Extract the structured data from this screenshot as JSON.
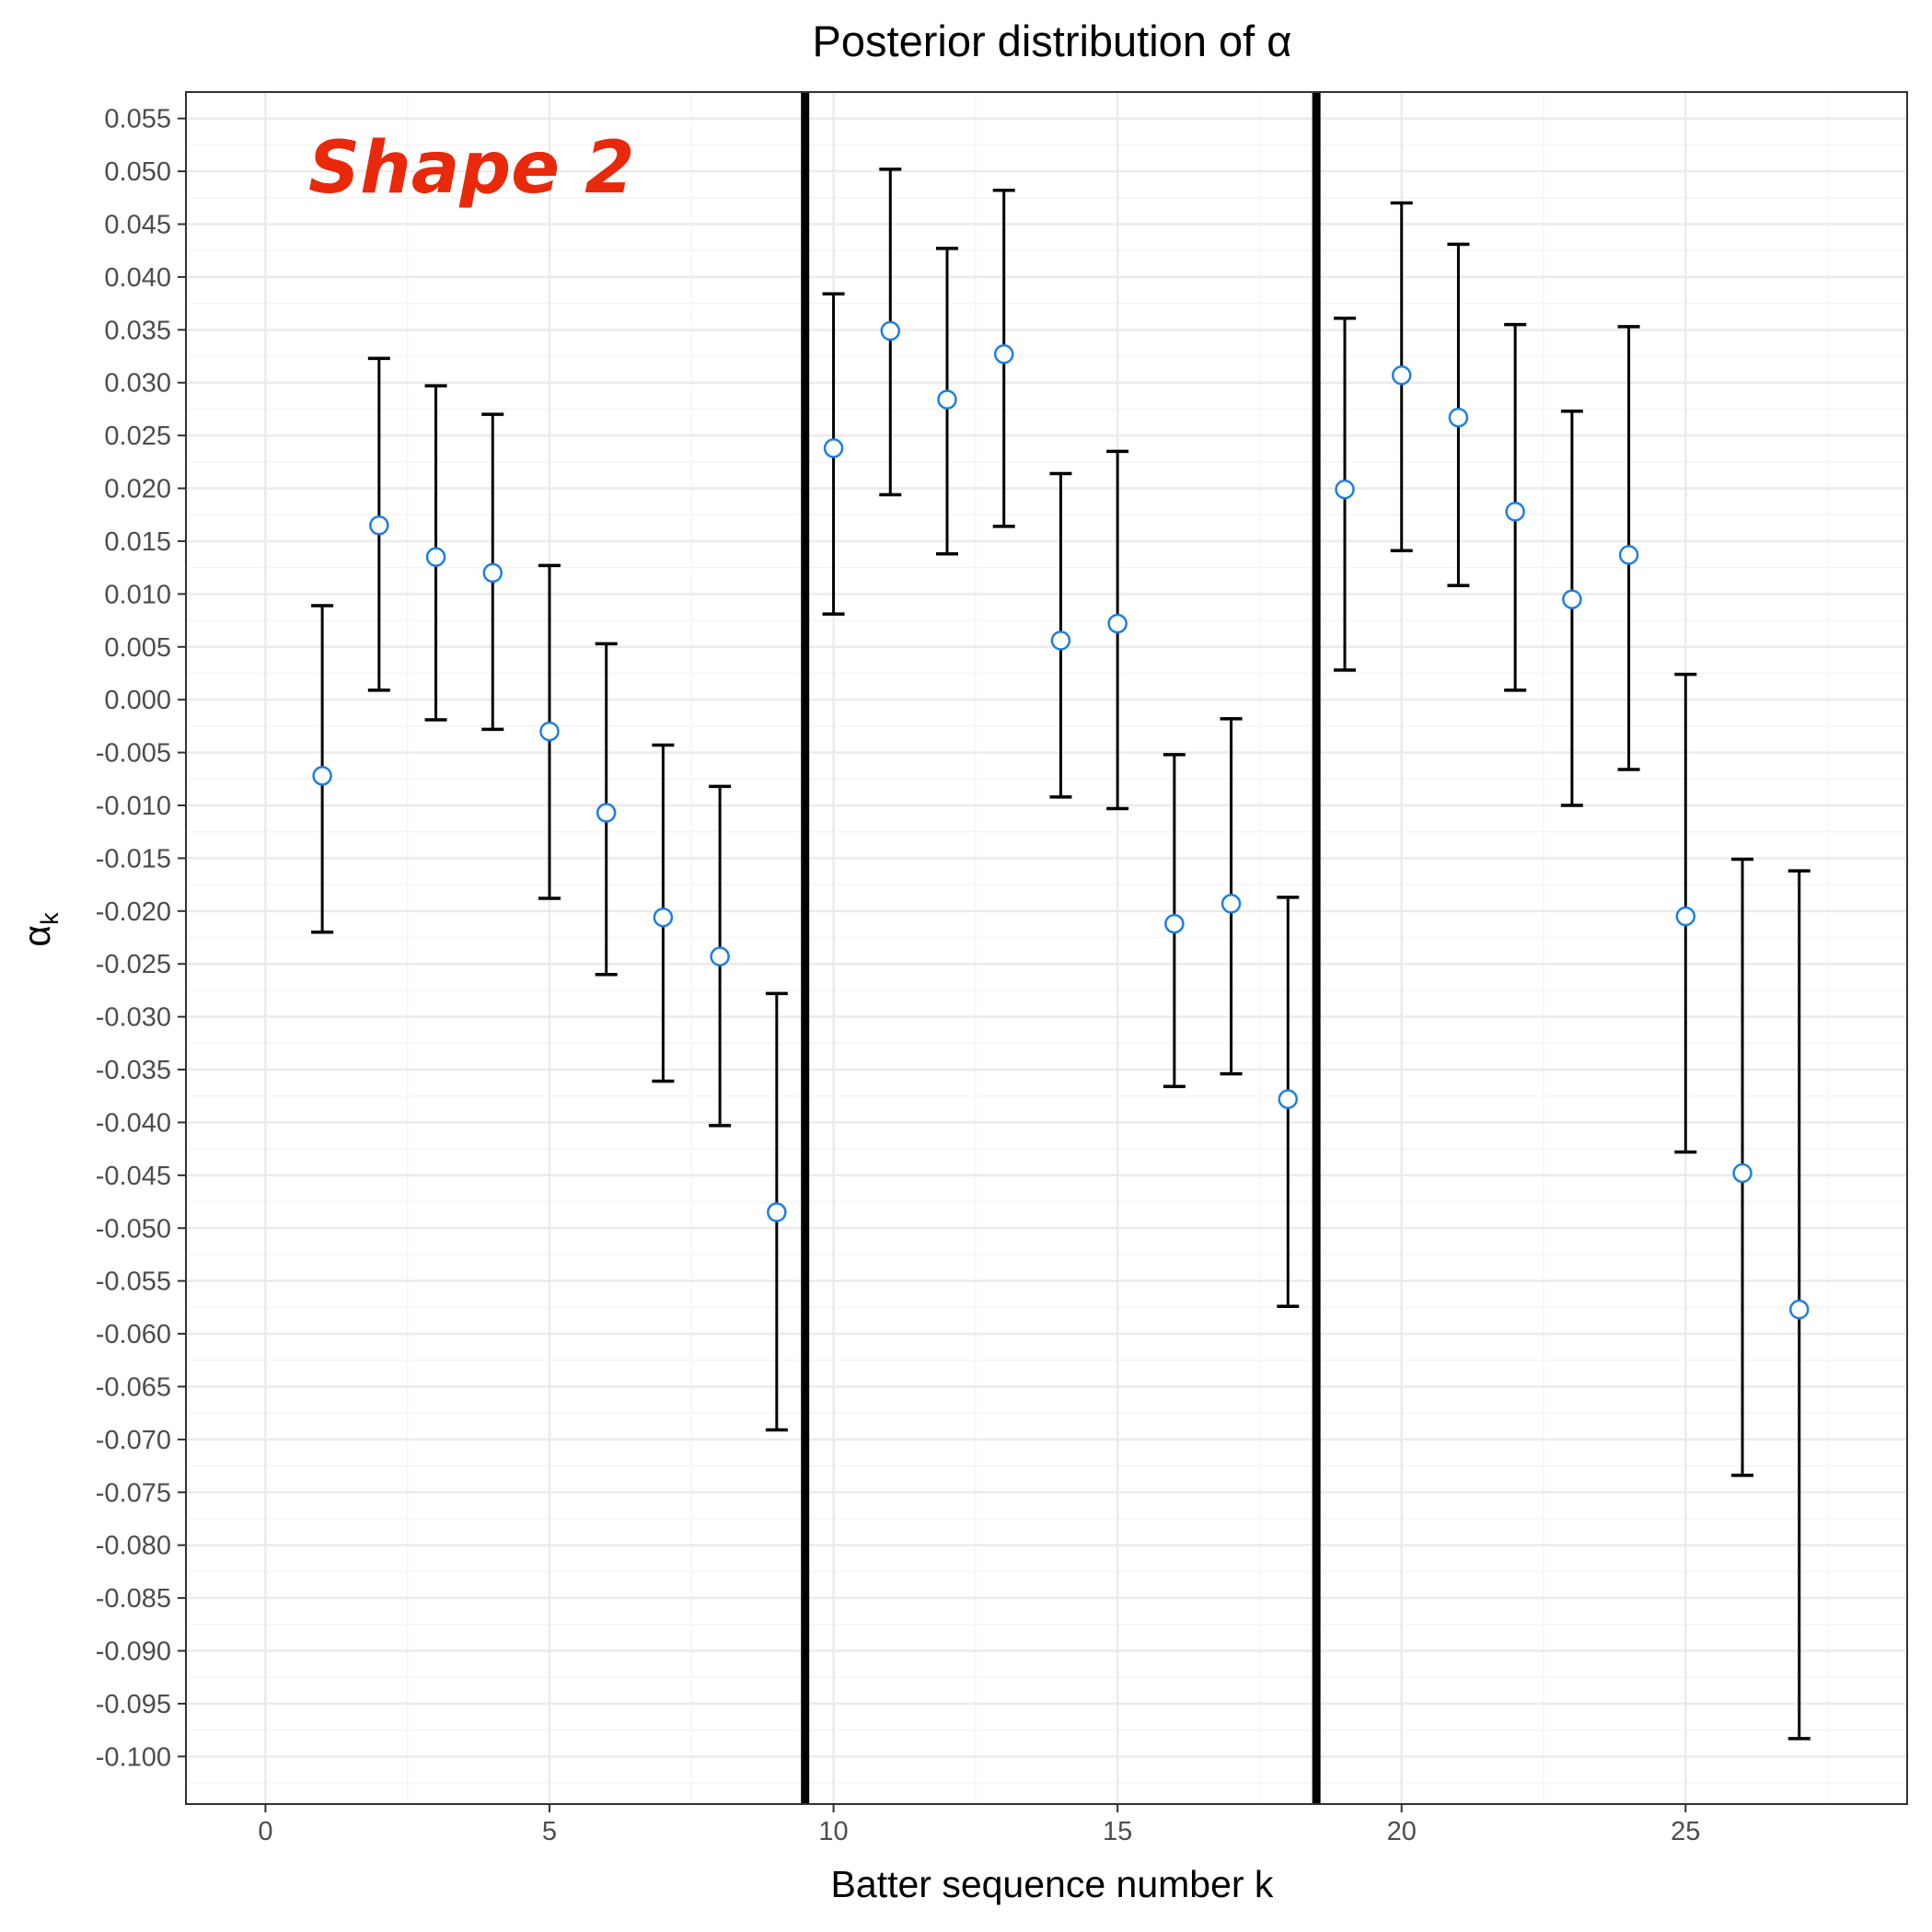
{
  "chart_data": {
    "type": "scatter",
    "title": "Posterior distribution of α",
    "xlabel": "Batter sequence number k",
    "ylabel": "α",
    "ylabel_subscript": "k",
    "xlim": [
      -1.4,
      28.9
    ],
    "ylim": [
      -0.1045,
      0.0575
    ],
    "x_ticks": [
      0,
      5,
      10,
      15,
      20,
      25
    ],
    "y_ticks": [
      0.055,
      0.05,
      0.045,
      0.04,
      0.035,
      0.03,
      0.025,
      0.02,
      0.015,
      0.01,
      0.005,
      0.0,
      -0.005,
      -0.01,
      -0.015,
      -0.02,
      -0.025,
      -0.03,
      -0.035,
      -0.04,
      -0.045,
      -0.05,
      -0.055,
      -0.06,
      -0.065,
      -0.07,
      -0.075,
      -0.08,
      -0.085,
      -0.09,
      -0.095,
      -0.1
    ],
    "y_tick_labels": [
      "0.055",
      "0.050",
      "0.045",
      "0.040",
      "0.035",
      "0.030",
      "0.025",
      "0.020",
      "0.015",
      "0.010",
      "0.005",
      "0.000",
      "-0.005",
      "-0.010",
      "-0.015",
      "-0.020",
      "-0.025",
      "-0.030",
      "-0.035",
      "-0.040",
      "-0.045",
      "-0.050",
      "-0.055",
      "-0.060",
      "-0.065",
      "-0.070",
      "-0.075",
      "-0.080",
      "-0.085",
      "-0.090",
      "-0.095",
      "-0.100"
    ],
    "grid": true,
    "vertical_lines": [
      9.5,
      18.5
    ],
    "annotation": "Shape 2",
    "points": [
      {
        "k": 1,
        "mean": -0.0072,
        "lower": -0.022,
        "upper": 0.0089
      },
      {
        "k": 2,
        "mean": 0.0165,
        "lower": 0.0009,
        "upper": 0.0323
      },
      {
        "k": 3,
        "mean": 0.0135,
        "lower": -0.0019,
        "upper": 0.0297
      },
      {
        "k": 4,
        "mean": 0.012,
        "lower": -0.0028,
        "upper": 0.027
      },
      {
        "k": 5,
        "mean": -0.003,
        "lower": -0.0188,
        "upper": 0.0127
      },
      {
        "k": 6,
        "mean": -0.0107,
        "lower": -0.026,
        "upper": 0.0053
      },
      {
        "k": 7,
        "mean": -0.0206,
        "lower": -0.0361,
        "upper": -0.0043
      },
      {
        "k": 8,
        "mean": -0.0243,
        "lower": -0.0403,
        "upper": -0.0082
      },
      {
        "k": 9,
        "mean": -0.0485,
        "lower": -0.0691,
        "upper": -0.0278
      },
      {
        "k": 10,
        "mean": 0.0238,
        "lower": 0.0081,
        "upper": 0.0384
      },
      {
        "k": 11,
        "mean": 0.0349,
        "lower": 0.0194,
        "upper": 0.0502
      },
      {
        "k": 12,
        "mean": 0.0284,
        "lower": 0.0138,
        "upper": 0.0427
      },
      {
        "k": 13,
        "mean": 0.0327,
        "lower": 0.0164,
        "upper": 0.0482
      },
      {
        "k": 14,
        "mean": 0.0056,
        "lower": -0.0092,
        "upper": 0.0214
      },
      {
        "k": 15,
        "mean": 0.0072,
        "lower": -0.0103,
        "upper": 0.0235
      },
      {
        "k": 16,
        "mean": -0.0212,
        "lower": -0.0366,
        "upper": -0.0052
      },
      {
        "k": 17,
        "mean": -0.0193,
        "lower": -0.0354,
        "upper": -0.0018
      },
      {
        "k": 18,
        "mean": -0.0378,
        "lower": -0.0574,
        "upper": -0.0187
      },
      {
        "k": 19,
        "mean": 0.0199,
        "lower": 0.0028,
        "upper": 0.0361
      },
      {
        "k": 20,
        "mean": 0.0307,
        "lower": 0.0141,
        "upper": 0.047
      },
      {
        "k": 21,
        "mean": 0.0267,
        "lower": 0.0108,
        "upper": 0.0431
      },
      {
        "k": 22,
        "mean": 0.0178,
        "lower": 0.0009,
        "upper": 0.0355
      },
      {
        "k": 23,
        "mean": 0.0095,
        "lower": -0.01,
        "upper": 0.0273
      },
      {
        "k": 24,
        "mean": 0.0137,
        "lower": -0.0066,
        "upper": 0.0353
      },
      {
        "k": 25,
        "mean": -0.0205,
        "lower": -0.0428,
        "upper": 0.0024
      },
      {
        "k": 26,
        "mean": -0.0448,
        "lower": -0.0734,
        "upper": -0.0151
      },
      {
        "k": 27,
        "mean": -0.0577,
        "lower": -0.0983,
        "upper": -0.0162
      }
    ],
    "colors": {
      "point_stroke": "#1e7fe0",
      "point_fill": "#ffffff",
      "errorbar": "#000000",
      "vline": "#000000",
      "grid_major": "#ebebeb",
      "grid_minor": "#f5f5f5",
      "panel_border": "#333333",
      "annotation": "#e8290b"
    }
  }
}
